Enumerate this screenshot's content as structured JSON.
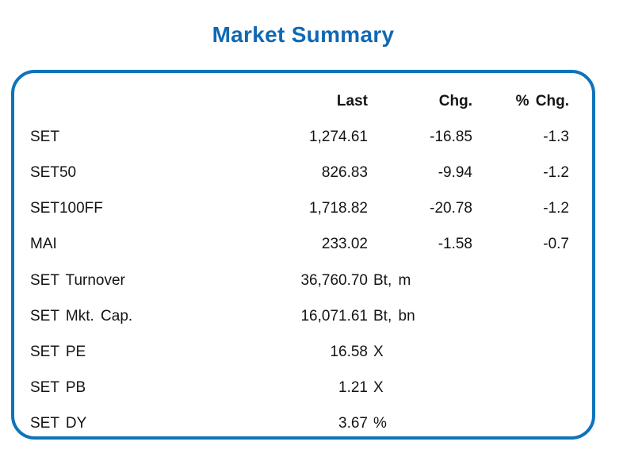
{
  "title": "Market Summary",
  "colors": {
    "accent_blue": "#1068B3",
    "border_blue": "#0E73BA",
    "text": "#141414"
  },
  "table": {
    "headers": {
      "last": "Last",
      "chg": "Chg.",
      "pct": "% Chg."
    },
    "rows": [
      {
        "label": "SET",
        "last": "1,274.61",
        "chg": "-16.85",
        "pct": "-1.3"
      },
      {
        "label": "SET50",
        "last": "826.83",
        "chg": "-9.94",
        "pct": "-1.2"
      },
      {
        "label": "SET100FF",
        "last": "1,718.82",
        "chg": "-20.78",
        "pct": "-1.2"
      },
      {
        "label": "MAI",
        "last": "233.02",
        "chg": "-1.58",
        "pct": "-0.7"
      },
      {
        "label": "SET Turnover",
        "last": "36,760.70",
        "unit": "Bt, m"
      },
      {
        "label": "SET Mkt. Cap.",
        "last": "16,071.61",
        "unit": "Bt, bn"
      },
      {
        "label": "SET PE",
        "last": "16.58",
        "unit": "X"
      },
      {
        "label": "SET PB",
        "last": "1.21",
        "unit": "X"
      },
      {
        "label": "SET DY",
        "last": "3.67",
        "unit": "%"
      }
    ]
  },
  "chart_data": {
    "type": "table",
    "title": "Market Summary",
    "columns": [
      "",
      "Last",
      "Chg.",
      "% Chg."
    ],
    "rows": [
      [
        "SET",
        "1,274.61",
        "-16.85",
        "-1.3"
      ],
      [
        "SET50",
        "826.83",
        "-9.94",
        "-1.2"
      ],
      [
        "SET100FF",
        "1,718.82",
        "-20.78",
        "-1.2"
      ],
      [
        "MAI",
        "233.02",
        "-1.58",
        "-0.7"
      ],
      [
        "SET Turnover",
        "36,760.70 Bt, m",
        "",
        ""
      ],
      [
        "SET Mkt. Cap.",
        "16,071.61 Bt, bn",
        "",
        ""
      ],
      [
        "SET PE",
        "16.58 X",
        "",
        ""
      ],
      [
        "SET PB",
        "1.21 X",
        "",
        ""
      ],
      [
        "SET DY",
        "3.67 %",
        "",
        ""
      ]
    ]
  }
}
